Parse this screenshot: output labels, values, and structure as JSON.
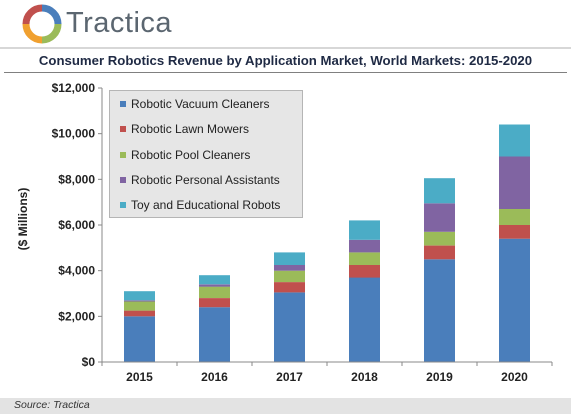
{
  "brand": {
    "name": "Tractica",
    "logo_icon": "tractica-ring-icon"
  },
  "source_note": "Source: Tractica",
  "chart_data": {
    "type": "bar",
    "stacked": true,
    "title": "Consumer Robotics Revenue by Application Market, World Markets: 2015-2020",
    "ylabel": "($ Millions)",
    "xlabel": "",
    "ylim": [
      0,
      12000
    ],
    "yticks": [
      {
        "value": 0,
        "label": "$0"
      },
      {
        "value": 2000,
        "label": "$2,000"
      },
      {
        "value": 4000,
        "label": "$4,000"
      },
      {
        "value": 6000,
        "label": "$6,000"
      },
      {
        "value": 8000,
        "label": "$8,000"
      },
      {
        "value": 10000,
        "label": "$10,000"
      },
      {
        "value": 12000,
        "label": "$12,000"
      }
    ],
    "grid": false,
    "legend_position": "top-left",
    "categories": [
      "2015",
      "2016",
      "2017",
      "2018",
      "2019",
      "2020"
    ],
    "series": [
      {
        "name": "Robotic Vacuum Cleaners",
        "color": "#4a7ebb",
        "values": [
          2000,
          2400,
          3050,
          3700,
          4500,
          5400
        ]
      },
      {
        "name": "Robotic Lawn Mowers",
        "color": "#c0504d",
        "values": [
          250,
          400,
          450,
          550,
          600,
          600
        ]
      },
      {
        "name": "Robotic Pool Cleaners",
        "color": "#9bbb59",
        "values": [
          400,
          500,
          500,
          550,
          600,
          700
        ]
      },
      {
        "name": "Robotic Personal Assistants",
        "color": "#8064a2",
        "values": [
          50,
          100,
          250,
          550,
          1250,
          2300
        ]
      },
      {
        "name": "Toy and Educational Robots",
        "color": "#4bacc6",
        "values": [
          400,
          400,
          550,
          850,
          1100,
          1400
        ]
      }
    ]
  }
}
